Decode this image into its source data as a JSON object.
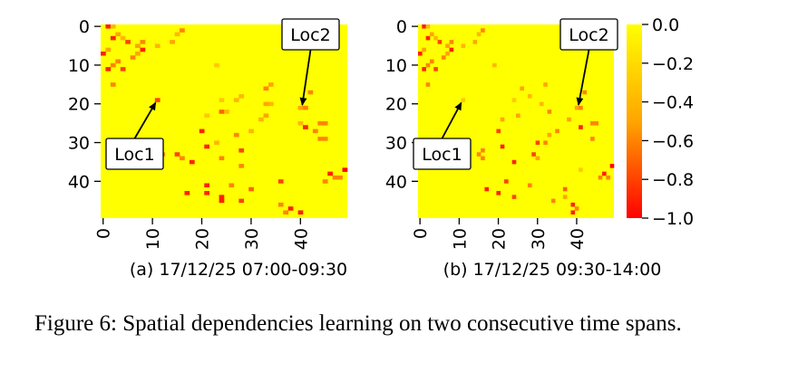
{
  "chart_data": [
    {
      "type": "heatmap",
      "title": "(a) 17/12/25 07:00-09:30",
      "size": 50,
      "xticks": [
        0,
        10,
        20,
        30,
        40
      ],
      "yticks": [
        0,
        10,
        20,
        30,
        40
      ],
      "xlim": [
        0,
        50
      ],
      "ylim": [
        50,
        0
      ],
      "cells": [
        {
          "r": 0,
          "c": 1,
          "v": -0.9
        },
        {
          "r": 0,
          "c": 2,
          "v": -0.4
        },
        {
          "r": 1,
          "c": 16,
          "v": -0.6
        },
        {
          "r": 2,
          "c": 15,
          "v": -0.4
        },
        {
          "r": 2,
          "c": 3,
          "v": -0.5
        },
        {
          "r": 3,
          "c": 2,
          "v": -0.9
        },
        {
          "r": 3,
          "c": 4,
          "v": -0.4
        },
        {
          "r": 4,
          "c": 14,
          "v": -0.5
        },
        {
          "r": 4,
          "c": 8,
          "v": -0.6
        },
        {
          "r": 4,
          "c": 5,
          "v": -0.8
        },
        {
          "r": 5,
          "c": 7,
          "v": -0.5
        },
        {
          "r": 5,
          "c": 11,
          "v": -0.4
        },
        {
          "r": 6,
          "c": 8,
          "v": -0.9
        },
        {
          "r": 6,
          "c": 1,
          "v": -0.5
        },
        {
          "r": 7,
          "c": 0,
          "v": -0.9
        },
        {
          "r": 7,
          "c": 7,
          "v": -0.5
        },
        {
          "r": 8,
          "c": 6,
          "v": -0.6
        },
        {
          "r": 9,
          "c": 3,
          "v": -0.6
        },
        {
          "r": 10,
          "c": 2,
          "v": -0.6
        },
        {
          "r": 10,
          "c": 23,
          "v": -0.3
        },
        {
          "r": 11,
          "c": 1,
          "v": -0.9
        },
        {
          "r": 11,
          "c": 4,
          "v": -0.8
        },
        {
          "r": 15,
          "c": 2,
          "v": -0.6
        },
        {
          "r": 15,
          "c": 34,
          "v": -0.5
        },
        {
          "r": 16,
          "c": 33,
          "v": -0.6
        },
        {
          "r": 17,
          "c": 42,
          "v": -0.6
        },
        {
          "r": 18,
          "c": 28,
          "v": -0.4
        },
        {
          "r": 19,
          "c": 11,
          "v": -0.8
        },
        {
          "r": 19,
          "c": 24,
          "v": -0.3
        },
        {
          "r": 19,
          "c": 27,
          "v": -0.4
        },
        {
          "r": 20,
          "c": 34,
          "v": -0.4
        },
        {
          "r": 20,
          "c": 33,
          "v": -0.5
        },
        {
          "r": 21,
          "c": 40,
          "v": -0.5
        },
        {
          "r": 21,
          "c": 41,
          "v": -0.6
        },
        {
          "r": 22,
          "c": 24,
          "v": -0.7
        },
        {
          "r": 22,
          "c": 25,
          "v": -0.4
        },
        {
          "r": 23,
          "c": 21,
          "v": -0.3
        },
        {
          "r": 23,
          "c": 33,
          "v": -0.5
        },
        {
          "r": 24,
          "c": 32,
          "v": -0.4
        },
        {
          "r": 25,
          "c": 40,
          "v": -0.4
        },
        {
          "r": 25,
          "c": 44,
          "v": -0.6
        },
        {
          "r": 25,
          "c": 45,
          "v": -0.6
        },
        {
          "r": 26,
          "c": 41,
          "v": -0.9
        },
        {
          "r": 27,
          "c": 20,
          "v": -0.9
        },
        {
          "r": 27,
          "c": 30,
          "v": -0.4
        },
        {
          "r": 27,
          "c": 43,
          "v": -0.6
        },
        {
          "r": 28,
          "c": 27,
          "v": -0.6
        },
        {
          "r": 29,
          "c": 44,
          "v": -0.6
        },
        {
          "r": 29,
          "c": 45,
          "v": -0.6
        },
        {
          "r": 30,
          "c": 23,
          "v": -0.4
        },
        {
          "r": 31,
          "c": 21,
          "v": -0.9
        },
        {
          "r": 32,
          "c": 28,
          "v": -0.8
        },
        {
          "r": 33,
          "c": 15,
          "v": -0.8
        },
        {
          "r": 33,
          "c": 12,
          "v": -0.6
        },
        {
          "r": 34,
          "c": 24,
          "v": -0.6
        },
        {
          "r": 34,
          "c": 16,
          "v": -0.6
        },
        {
          "r": 35,
          "c": 18,
          "v": -0.9
        },
        {
          "r": 36,
          "c": 28,
          "v": -0.6
        },
        {
          "r": 37,
          "c": 49,
          "v": -1.0
        },
        {
          "r": 38,
          "c": 46,
          "v": -0.9
        },
        {
          "r": 39,
          "c": 47,
          "v": -0.6
        },
        {
          "r": 39,
          "c": 48,
          "v": -0.6
        },
        {
          "r": 40,
          "c": 36,
          "v": -0.8
        },
        {
          "r": 40,
          "c": 45,
          "v": -0.6
        },
        {
          "r": 41,
          "c": 21,
          "v": -0.9
        },
        {
          "r": 41,
          "c": 26,
          "v": -0.6
        },
        {
          "r": 42,
          "c": 30,
          "v": -0.7
        },
        {
          "r": 43,
          "c": 21,
          "v": -0.9
        },
        {
          "r": 43,
          "c": 17,
          "v": -0.9
        },
        {
          "r": 44,
          "c": 24,
          "v": -0.9
        },
        {
          "r": 45,
          "c": 24,
          "v": -0.9
        },
        {
          "r": 45,
          "c": 28,
          "v": -0.8
        },
        {
          "r": 46,
          "c": 36,
          "v": -0.6
        },
        {
          "r": 47,
          "c": 38,
          "v": -0.9
        },
        {
          "r": 48,
          "c": 40,
          "v": -0.9
        },
        {
          "r": 48,
          "c": 37,
          "v": -0.6
        }
      ],
      "annotations": [
        {
          "text": "Loc1",
          "row": 19,
          "col": 11
        },
        {
          "text": "Loc2",
          "row": 21,
          "col": 40
        }
      ]
    },
    {
      "type": "heatmap",
      "title": "(b) 17/12/25 09:30-14:00",
      "size": 50,
      "xticks": [
        0,
        10,
        20,
        30,
        40
      ],
      "yticks": [
        0,
        10,
        20,
        30,
        40
      ],
      "xlim": [
        0,
        50
      ],
      "ylim": [
        50,
        0
      ],
      "cells": [
        {
          "r": 0,
          "c": 1,
          "v": -0.9
        },
        {
          "r": 0,
          "c": 2,
          "v": -0.4
        },
        {
          "r": 1,
          "c": 16,
          "v": -0.6
        },
        {
          "r": 2,
          "c": 15,
          "v": -0.4
        },
        {
          "r": 2,
          "c": 3,
          "v": -0.5
        },
        {
          "r": 3,
          "c": 2,
          "v": -0.9
        },
        {
          "r": 3,
          "c": 4,
          "v": -0.4
        },
        {
          "r": 4,
          "c": 14,
          "v": -0.5
        },
        {
          "r": 4,
          "c": 8,
          "v": -0.6
        },
        {
          "r": 4,
          "c": 5,
          "v": -0.8
        },
        {
          "r": 5,
          "c": 7,
          "v": -0.5
        },
        {
          "r": 5,
          "c": 11,
          "v": -0.4
        },
        {
          "r": 6,
          "c": 8,
          "v": -0.9
        },
        {
          "r": 6,
          "c": 1,
          "v": -0.5
        },
        {
          "r": 7,
          "c": 0,
          "v": -0.9
        },
        {
          "r": 7,
          "c": 7,
          "v": -0.5
        },
        {
          "r": 8,
          "c": 6,
          "v": -0.6
        },
        {
          "r": 9,
          "c": 3,
          "v": -0.6
        },
        {
          "r": 10,
          "c": 2,
          "v": -0.6
        },
        {
          "r": 10,
          "c": 19,
          "v": -0.4
        },
        {
          "r": 11,
          "c": 1,
          "v": -0.9
        },
        {
          "r": 11,
          "c": 4,
          "v": -0.8
        },
        {
          "r": 15,
          "c": 2,
          "v": -0.6
        },
        {
          "r": 15,
          "c": 32,
          "v": -0.5
        },
        {
          "r": 16,
          "c": 26,
          "v": -0.5
        },
        {
          "r": 17,
          "c": 42,
          "v": -0.6
        },
        {
          "r": 18,
          "c": 28,
          "v": -0.4
        },
        {
          "r": 19,
          "c": 11,
          "v": -0.3
        },
        {
          "r": 19,
          "c": 24,
          "v": -0.3
        },
        {
          "r": 20,
          "c": 31,
          "v": -0.4
        },
        {
          "r": 21,
          "c": 40,
          "v": -0.5
        },
        {
          "r": 21,
          "c": 41,
          "v": -0.6
        },
        {
          "r": 22,
          "c": 33,
          "v": -0.6
        },
        {
          "r": 23,
          "c": 25,
          "v": -0.5
        },
        {
          "r": 24,
          "c": 21,
          "v": -0.5
        },
        {
          "r": 24,
          "c": 38,
          "v": -0.5
        },
        {
          "r": 25,
          "c": 44,
          "v": -0.6
        },
        {
          "r": 25,
          "c": 45,
          "v": -0.6
        },
        {
          "r": 26,
          "c": 41,
          "v": -0.9
        },
        {
          "r": 27,
          "c": 20,
          "v": -0.8
        },
        {
          "r": 27,
          "c": 35,
          "v": -0.6
        },
        {
          "r": 28,
          "c": 33,
          "v": -0.5
        },
        {
          "r": 29,
          "c": 44,
          "v": -0.6
        },
        {
          "r": 30,
          "c": 30,
          "v": -0.8
        },
        {
          "r": 30,
          "c": 32,
          "v": -0.6
        },
        {
          "r": 31,
          "c": 21,
          "v": -0.9
        },
        {
          "r": 32,
          "c": 16,
          "v": -0.6
        },
        {
          "r": 33,
          "c": 15,
          "v": -0.6
        },
        {
          "r": 33,
          "c": 29,
          "v": -0.8
        },
        {
          "r": 34,
          "c": 30,
          "v": -0.5
        },
        {
          "r": 34,
          "c": 16,
          "v": -0.6
        },
        {
          "r": 35,
          "c": 24,
          "v": -0.9
        },
        {
          "r": 36,
          "c": 49,
          "v": -1.0
        },
        {
          "r": 37,
          "c": 41,
          "v": -0.3
        },
        {
          "r": 38,
          "c": 47,
          "v": -0.9
        },
        {
          "r": 39,
          "c": 46,
          "v": -0.6
        },
        {
          "r": 39,
          "c": 48,
          "v": -0.6
        },
        {
          "r": 40,
          "c": 22,
          "v": -0.8
        },
        {
          "r": 41,
          "c": 28,
          "v": -0.6
        },
        {
          "r": 42,
          "c": 17,
          "v": -0.9
        },
        {
          "r": 42,
          "c": 37,
          "v": -0.7
        },
        {
          "r": 43,
          "c": 20,
          "v": -0.9
        },
        {
          "r": 44,
          "c": 24,
          "v": -0.8
        },
        {
          "r": 44,
          "c": 37,
          "v": -0.5
        },
        {
          "r": 45,
          "c": 34,
          "v": -0.6
        },
        {
          "r": 46,
          "c": 39,
          "v": -0.9
        },
        {
          "r": 47,
          "c": 40,
          "v": -0.6
        },
        {
          "r": 48,
          "c": 39,
          "v": -0.9
        }
      ],
      "annotations": [
        {
          "text": "Loc1",
          "row": 19,
          "col": 11
        },
        {
          "text": "Loc2",
          "row": 21,
          "col": 40
        }
      ]
    }
  ],
  "colorbar": {
    "ticks": [
      0.0,
      -0.2,
      -0.4,
      -0.6,
      -0.8,
      -1.0
    ],
    "tick_labels": [
      "0.0",
      "−0.2",
      "−0.4",
      "−0.6",
      "−0.8",
      "−1.0"
    ],
    "range": [
      -1.0,
      0.0
    ],
    "color_top": "#ffff00",
    "color_mid": "#ffa500",
    "color_bottom": "#ff0000"
  },
  "caption": "Figure 6:  Spatial dependencies learning on two consecutive time spans."
}
